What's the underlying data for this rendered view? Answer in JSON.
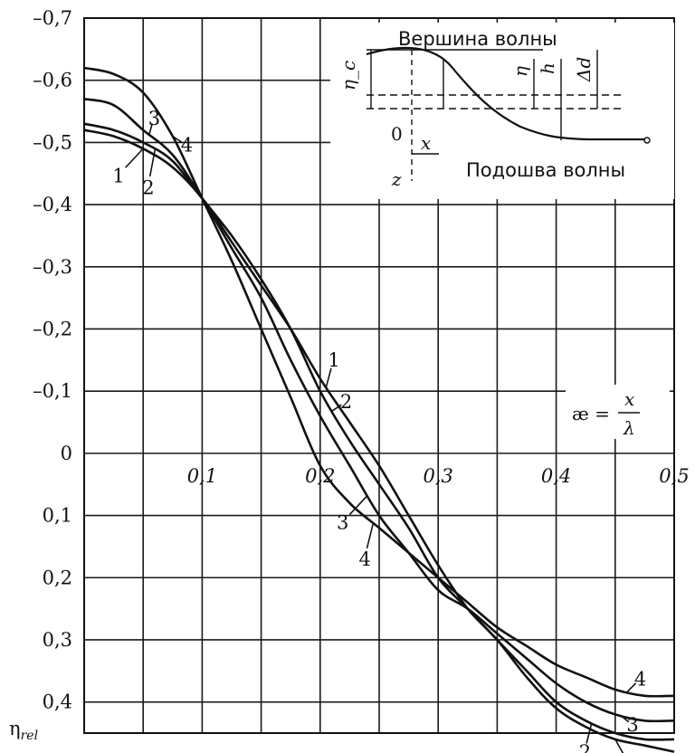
{
  "chart_data": {
    "type": "line",
    "title": "",
    "ylabel": "η_rel",
    "xlabel": "æ = x/λ",
    "xlim": [
      0,
      0.5
    ],
    "ylim": [
      0.45,
      -0.7
    ],
    "x_ticks": [
      {
        "value": 0.1,
        "label": "0,1"
      },
      {
        "value": 0.2,
        "label": "0,2"
      },
      {
        "value": 0.3,
        "label": "0,3"
      },
      {
        "value": 0.4,
        "label": "0,4"
      },
      {
        "value": 0.5,
        "label": "0,5"
      }
    ],
    "y_ticks": [
      {
        "value": -0.7,
        "label": "–0,7"
      },
      {
        "value": -0.6,
        "label": "–0,6"
      },
      {
        "value": -0.5,
        "label": "–0,5"
      },
      {
        "value": -0.4,
        "label": "–0,4"
      },
      {
        "value": -0.3,
        "label": "–0,3"
      },
      {
        "value": -0.2,
        "label": "–0,2"
      },
      {
        "value": -0.1,
        "label": "–0,1"
      },
      {
        "value": 0.0,
        "label": "0"
      },
      {
        "value": 0.1,
        "label": "0,1"
      },
      {
        "value": 0.2,
        "label": "0,2"
      },
      {
        "value": 0.3,
        "label": "0,3"
      },
      {
        "value": 0.4,
        "label": "0,4"
      }
    ],
    "grid": true,
    "series": [
      {
        "name": "1",
        "x": [
          0,
          0.025,
          0.05,
          0.075,
          0.1,
          0.125,
          0.15,
          0.175,
          0.2,
          0.225,
          0.25,
          0.275,
          0.3,
          0.325,
          0.35,
          0.375,
          0.4,
          0.425,
          0.45,
          0.475,
          0.5
        ],
        "values": [
          -0.52,
          -0.51,
          -0.49,
          -0.46,
          -0.41,
          -0.34,
          -0.27,
          -0.2,
          -0.12,
          -0.05,
          0.02,
          0.1,
          0.18,
          0.25,
          0.3,
          0.36,
          0.41,
          0.44,
          0.46,
          0.47,
          0.48
        ]
      },
      {
        "name": "2",
        "x": [
          0,
          0.025,
          0.05,
          0.075,
          0.1,
          0.125,
          0.15,
          0.175,
          0.2,
          0.225,
          0.25,
          0.275,
          0.3,
          0.325,
          0.35,
          0.375,
          0.4,
          0.425,
          0.45,
          0.475,
          0.5
        ],
        "values": [
          -0.53,
          -0.52,
          -0.5,
          -0.47,
          -0.41,
          -0.35,
          -0.28,
          -0.2,
          -0.1,
          -0.02,
          0.05,
          0.12,
          0.2,
          0.25,
          0.3,
          0.35,
          0.4,
          0.43,
          0.45,
          0.46,
          0.46
        ]
      },
      {
        "name": "3",
        "x": [
          0,
          0.025,
          0.05,
          0.075,
          0.1,
          0.125,
          0.15,
          0.175,
          0.2,
          0.225,
          0.25,
          0.275,
          0.3,
          0.325,
          0.35,
          0.375,
          0.4,
          0.425,
          0.45,
          0.475,
          0.5
        ],
        "values": [
          -0.57,
          -0.56,
          -0.52,
          -0.48,
          -0.41,
          -0.33,
          -0.25,
          -0.15,
          -0.06,
          0.02,
          0.1,
          0.16,
          0.22,
          0.25,
          0.29,
          0.33,
          0.37,
          0.4,
          0.42,
          0.43,
          0.43
        ]
      },
      {
        "name": "4",
        "x": [
          0,
          0.025,
          0.05,
          0.075,
          0.1,
          0.125,
          0.15,
          0.175,
          0.2,
          0.225,
          0.25,
          0.275,
          0.3,
          0.325,
          0.35,
          0.375,
          0.4,
          0.425,
          0.45,
          0.475,
          0.5
        ],
        "values": [
          -0.62,
          -0.61,
          -0.58,
          -0.51,
          -0.41,
          -0.31,
          -0.2,
          -0.09,
          0.02,
          0.08,
          0.12,
          0.16,
          0.2,
          0.24,
          0.28,
          0.31,
          0.34,
          0.36,
          0.38,
          0.39,
          0.39
        ]
      }
    ],
    "annotations": {
      "inset_title": "Вершина волны",
      "inset_bottom": "Подошва волны",
      "inset_symbols": [
        "η_c",
        "η",
        "h",
        "Δd",
        "0",
        "x",
        "z"
      ],
      "formula_lhs": "æ =",
      "formula_num": "x",
      "formula_den": "λ"
    }
  }
}
